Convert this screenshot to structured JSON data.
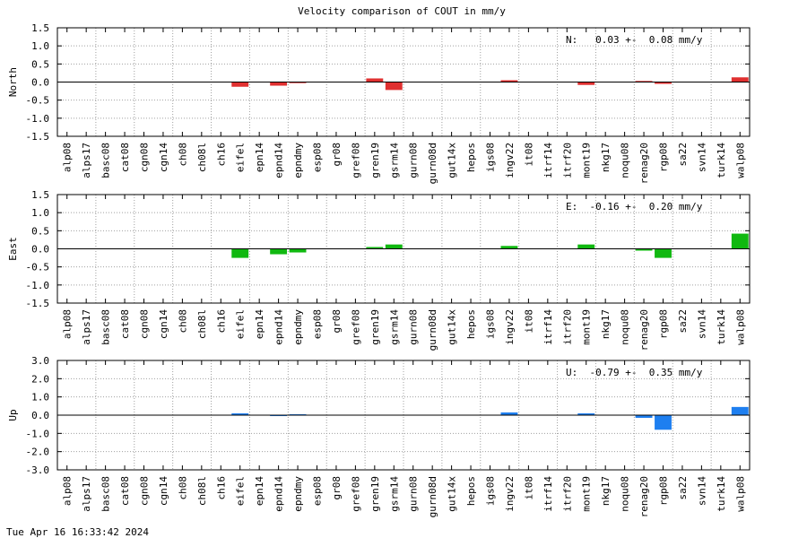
{
  "title": "Velocity comparison of COUT in mm/y",
  "timestamp": "Tue Apr 16 16:33:42 2024",
  "chart_data": [
    {
      "type": "bar",
      "ylabel": "North",
      "annotation": "N:   0.03 +-  0.08 mm/y",
      "color": "#e03030",
      "ylim": [
        -1.5,
        1.5
      ],
      "yticks": [
        1.5,
        1.0,
        0.5,
        0.0,
        -0.5,
        -1.0,
        -1.5
      ],
      "yticklabels": [
        "1.5",
        "1.0",
        "0.5",
        "0.0",
        "-0.5",
        "-1.0",
        "-1.5"
      ],
      "grid": true,
      "categories": [
        "alp08",
        "alps17",
        "basc08",
        "cat08",
        "cgn08",
        "cgn14",
        "ch08",
        "ch08l",
        "ch16",
        "eifel",
        "epn14",
        "epnd14",
        "epndmy",
        "esp08",
        "gr08",
        "gref08",
        "gren19",
        "gsrm14",
        "gurn08",
        "gurn08d",
        "gut14x",
        "hepos",
        "igs08",
        "ingv22",
        "it08",
        "itrf14",
        "itrf20",
        "mont19",
        "nkg17",
        "noqu08",
        "renag20",
        "rgp08",
        "sa22",
        "svn14",
        "turk14",
        "walp08"
      ],
      "values": [
        0,
        0,
        0,
        0,
        0,
        0,
        0,
        0,
        0,
        -0.13,
        0,
        -0.1,
        -0.03,
        0,
        0,
        0,
        0.1,
        -0.22,
        0,
        0,
        0,
        0,
        0,
        0.05,
        0,
        0,
        0,
        -0.08,
        0,
        0,
        0.03,
        -0.05,
        0,
        0,
        0,
        0.13
      ]
    },
    {
      "type": "bar",
      "ylabel": "East",
      "annotation": "E:  -0.16 +-  0.20 mm/y",
      "color": "#10b810",
      "ylim": [
        -1.5,
        1.5
      ],
      "yticks": [
        1.5,
        1.0,
        0.5,
        0.0,
        -0.5,
        -1.0,
        -1.5
      ],
      "yticklabels": [
        "1.5",
        "1.0",
        "0.5",
        "0.0",
        "-0.5",
        "-1.0",
        "-1.5"
      ],
      "grid": true,
      "categories": [
        "alp08",
        "alps17",
        "basc08",
        "cat08",
        "cgn08",
        "cgn14",
        "ch08",
        "ch08l",
        "ch16",
        "eifel",
        "epn14",
        "epnd14",
        "epndmy",
        "esp08",
        "gr08",
        "gref08",
        "gren19",
        "gsrm14",
        "gurn08",
        "gurn08d",
        "gut14x",
        "hepos",
        "igs08",
        "ingv22",
        "it08",
        "itrf14",
        "itrf20",
        "mont19",
        "nkg17",
        "noqu08",
        "renag20",
        "rgp08",
        "sa22",
        "svn14",
        "turk14",
        "walp08"
      ],
      "values": [
        0,
        0,
        0,
        0,
        0,
        0,
        0,
        0,
        0,
        -0.25,
        0,
        -0.15,
        -0.1,
        0,
        0,
        0,
        0.05,
        0.12,
        0,
        0,
        0,
        0,
        0,
        0.08,
        0,
        0,
        0,
        0.12,
        0,
        0,
        -0.05,
        -0.25,
        0,
        0,
        0,
        0.42
      ]
    },
    {
      "type": "bar",
      "ylabel": "Up",
      "annotation": "U:  -0.79 +-  0.35 mm/y",
      "color": "#1e7ff0",
      "ylim": [
        -3.0,
        3.0
      ],
      "yticks": [
        3.0,
        2.0,
        1.0,
        0.0,
        -1.0,
        -2.0,
        -3.0
      ],
      "yticklabels": [
        "3.0",
        "2.0",
        "1.0",
        "0.0",
        "-1.0",
        "-2.0",
        "-3.0"
      ],
      "grid": true,
      "categories": [
        "alp08",
        "alps17",
        "basc08",
        "cat08",
        "cgn08",
        "cgn14",
        "ch08",
        "ch08l",
        "ch16",
        "eifel",
        "epn14",
        "epnd14",
        "epndmy",
        "esp08",
        "gr08",
        "gref08",
        "gren19",
        "gsrm14",
        "gurn08",
        "gurn08d",
        "gut14x",
        "hepos",
        "igs08",
        "ingv22",
        "it08",
        "itrf14",
        "itrf20",
        "mont19",
        "nkg17",
        "noqu08",
        "renag20",
        "rgp08",
        "sa22",
        "svn14",
        "turk14",
        "walp08"
      ],
      "values": [
        0,
        0,
        0,
        0,
        0,
        0,
        0,
        0,
        0,
        0.1,
        0,
        -0.05,
        0.05,
        0,
        0,
        0,
        0,
        0,
        0,
        0,
        0,
        0,
        0,
        0.15,
        0,
        0,
        0,
        0.1,
        0,
        0,
        -0.15,
        -0.8,
        0,
        0,
        0,
        0.45
      ]
    }
  ]
}
